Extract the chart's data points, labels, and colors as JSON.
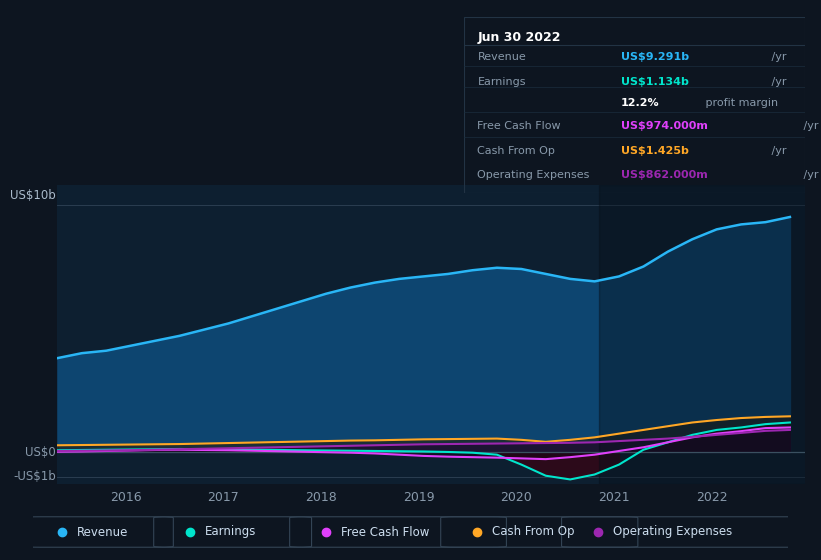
{
  "bg_color": "#0d1520",
  "chart_bg_color": "#0d1f30",
  "title": "Jun 30 2022",
  "y_label_top": "US$10b",
  "y_label_zero": "US$0",
  "y_label_neg": "-US$1b",
  "x_ticks": [
    2016,
    2017,
    2018,
    2019,
    2020,
    2021,
    2022
  ],
  "ylim": [
    -1.3,
    10.8
  ],
  "xlim_start": 2015.3,
  "xlim_end": 2022.95,
  "highlight_x_start": 2020.85,
  "revenue_color": "#29b6f6",
  "earnings_color": "#00e5cc",
  "fcf_color": "#e040fb",
  "cashop_color": "#ffa726",
  "opex_color": "#9c27b0",
  "legend_items": [
    "Revenue",
    "Earnings",
    "Free Cash Flow",
    "Cash From Op",
    "Operating Expenses"
  ],
  "legend_colors": [
    "#29b6f6",
    "#00e5cc",
    "#e040fb",
    "#ffa726",
    "#9c27b0"
  ],
  "table_header": "Jun 30 2022",
  "table_rows": [
    {
      "label": "Revenue",
      "value": "US$9.291b",
      "suffix": " /yr",
      "value_color": "#29b6f6",
      "extra": ""
    },
    {
      "label": "Earnings",
      "value": "US$1.134b",
      "suffix": " /yr",
      "value_color": "#00e5cc",
      "extra": ""
    },
    {
      "label": "",
      "value": "12.2%",
      "suffix": " profit margin",
      "value_color": "#ffffff",
      "extra": "bold"
    },
    {
      "label": "Free Cash Flow",
      "value": "US$974.000m",
      "suffix": " /yr",
      "value_color": "#e040fb",
      "extra": ""
    },
    {
      "label": "Cash From Op",
      "value": "US$1.425b",
      "suffix": " /yr",
      "value_color": "#ffa726",
      "extra": ""
    },
    {
      "label": "Operating Expenses",
      "value": "US$862.000m",
      "suffix": " /yr",
      "value_color": "#9c27b0",
      "extra": ""
    }
  ],
  "years": [
    2015.3,
    2015.55,
    2015.8,
    2016.05,
    2016.3,
    2016.55,
    2016.8,
    2017.05,
    2017.3,
    2017.55,
    2017.8,
    2018.05,
    2018.3,
    2018.55,
    2018.8,
    2019.05,
    2019.3,
    2019.55,
    2019.8,
    2020.05,
    2020.3,
    2020.55,
    2020.8,
    2021.05,
    2021.3,
    2021.55,
    2021.8,
    2022.05,
    2022.3,
    2022.55,
    2022.8
  ],
  "revenue": [
    3.8,
    4.0,
    4.1,
    4.3,
    4.5,
    4.7,
    4.95,
    5.2,
    5.5,
    5.8,
    6.1,
    6.4,
    6.65,
    6.85,
    7.0,
    7.1,
    7.2,
    7.35,
    7.45,
    7.4,
    7.2,
    7.0,
    6.9,
    7.1,
    7.5,
    8.1,
    8.6,
    9.0,
    9.2,
    9.291,
    9.5
  ],
  "earnings": [
    0.08,
    0.09,
    0.1,
    0.11,
    0.12,
    0.13,
    0.12,
    0.11,
    0.1,
    0.09,
    0.08,
    0.07,
    0.06,
    0.05,
    0.04,
    0.03,
    0.01,
    -0.02,
    -0.1,
    -0.5,
    -0.95,
    -1.1,
    -0.9,
    -0.5,
    0.1,
    0.4,
    0.7,
    0.9,
    1.0,
    1.134,
    1.2
  ],
  "fcf": [
    0.02,
    0.03,
    0.05,
    0.07,
    0.09,
    0.1,
    0.09,
    0.08,
    0.06,
    0.04,
    0.02,
    0.0,
    -0.02,
    -0.05,
    -0.1,
    -0.15,
    -0.18,
    -0.2,
    -0.22,
    -0.25,
    -0.28,
    -0.2,
    -0.1,
    0.05,
    0.2,
    0.4,
    0.6,
    0.75,
    0.85,
    0.974,
    1.0
  ],
  "cashop": [
    0.28,
    0.29,
    0.3,
    0.31,
    0.32,
    0.33,
    0.35,
    0.37,
    0.39,
    0.41,
    0.43,
    0.45,
    0.47,
    0.48,
    0.5,
    0.52,
    0.53,
    0.54,
    0.55,
    0.5,
    0.42,
    0.5,
    0.6,
    0.75,
    0.9,
    1.05,
    1.2,
    1.3,
    1.38,
    1.425,
    1.45
  ],
  "opex": [
    0.05,
    0.06,
    0.07,
    0.08,
    0.1,
    0.12,
    0.14,
    0.16,
    0.18,
    0.2,
    0.22,
    0.24,
    0.26,
    0.28,
    0.3,
    0.32,
    0.33,
    0.34,
    0.35,
    0.36,
    0.37,
    0.38,
    0.4,
    0.45,
    0.5,
    0.55,
    0.62,
    0.7,
    0.78,
    0.862,
    0.9
  ]
}
